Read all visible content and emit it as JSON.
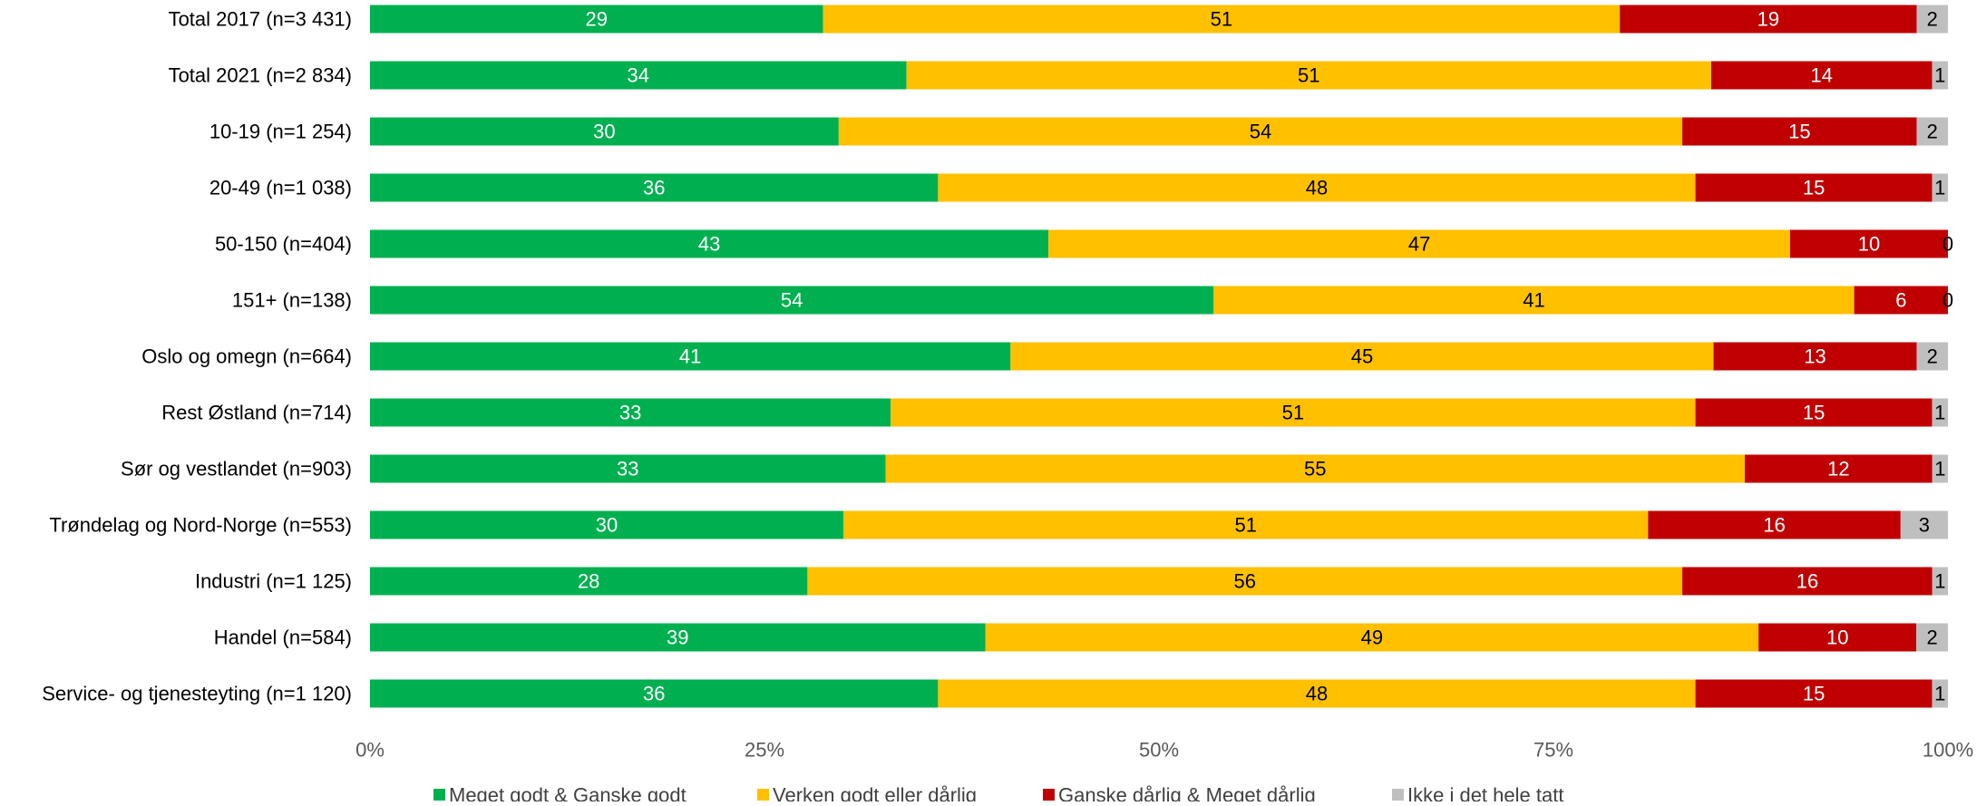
{
  "chart_data": {
    "type": "bar",
    "orientation": "horizontal",
    "stacked": "percent",
    "categories": [
      "Total 2017 (n=3 431)",
      "Total 2021 (n=2 834)",
      "10-19 (n=1 254)",
      "20-49 (n=1 038)",
      "50-150 (n=404)",
      "151+ (n=138)",
      "Oslo og omegn (n=664)",
      "Rest Østland (n=714)",
      "Sør og vestlandet (n=903)",
      "Trøndelag og Nord-Norge (n=553)",
      "Industri (n=1 125)",
      "Handel (n=584)",
      "Service- og tjenesteyting (n=1 120)"
    ],
    "series": [
      {
        "name": "Meget godt & Ganske godt",
        "color": "#00B050",
        "label_color": "#ffffff",
        "values": [
          29,
          34,
          30,
          36,
          43,
          54,
          41,
          33,
          33,
          30,
          28,
          39,
          36
        ]
      },
      {
        "name": "Verken godt eller dårlig",
        "color": "#FFC000",
        "label_color": "#000000",
        "values": [
          51,
          51,
          54,
          48,
          47,
          41,
          45,
          51,
          55,
          51,
          56,
          49,
          48
        ]
      },
      {
        "name": "Ganske dårlig & Meget dårlig",
        "color": "#C00000",
        "label_color": "#ffffff",
        "values": [
          19,
          14,
          15,
          15,
          10,
          6,
          13,
          15,
          12,
          16,
          16,
          10,
          15
        ]
      },
      {
        "name": "Ikke i det hele tatt",
        "color": "#BFBFBF",
        "label_color": "#000000",
        "values": [
          2,
          1,
          2,
          1,
          0,
          0,
          2,
          1,
          1,
          3,
          1,
          2,
          1
        ]
      }
    ],
    "x_ticks": [
      "0%",
      "25%",
      "50%",
      "75%",
      "100%"
    ],
    "xlim": [
      0,
      100
    ],
    "grid": false,
    "legend_position": "bottom",
    "title": "",
    "xlabel": "",
    "ylabel": ""
  }
}
